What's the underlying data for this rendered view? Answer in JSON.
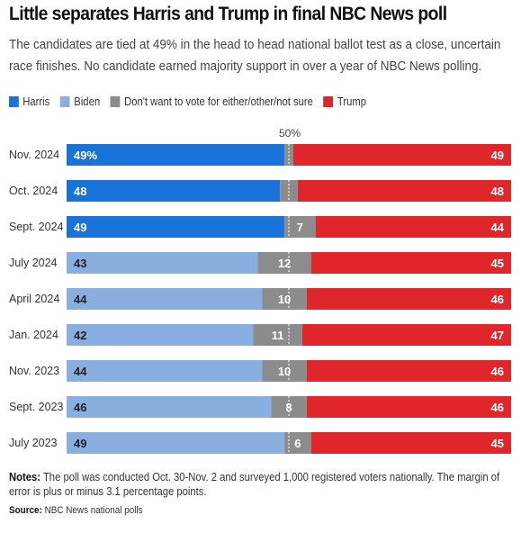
{
  "title": "Little separates Harris and Trump in final NBC News poll",
  "subtitle": "The candidates are tied at 49% in the head to head national ballot test as a close, uncertain race finishes. No candidate earned majority support in over a year of NBC News polling.",
  "legend": [
    {
      "label": "Harris",
      "color": "#1a73d9"
    },
    {
      "label": "Biden",
      "color": "#89aee0"
    },
    {
      "label": "Don't want to vote for either/other/not sure",
      "color": "#8c8c8c"
    },
    {
      "label": "Trump",
      "color": "#e0262b"
    }
  ],
  "notes_label": "Notes:",
  "notes_text": " The poll was conducted Oct. 30-Nov. 2 and surveyed 1,000 registered voters nationally. The margin of error is plus or minus 3.1 percentage points.",
  "source_label": "Source:",
  "source_text": " NBC News national polls",
  "chart_data": {
    "type": "bar",
    "orientation": "horizontal",
    "stacked": true,
    "categories": [
      "Nov. 2024",
      "Oct. 2024",
      "Sept. 2024",
      "July 2024",
      "April 2024",
      "Jan. 2024",
      "Nov. 2023",
      "Sept. 2023",
      "July 2023"
    ],
    "democrat_candidate": [
      "Harris",
      "Harris",
      "Harris",
      "Biden",
      "Biden",
      "Biden",
      "Biden",
      "Biden",
      "Biden"
    ],
    "series": [
      {
        "name": "Harris / Biden",
        "values": [
          49,
          48,
          49,
          43,
          44,
          42,
          44,
          46,
          49
        ]
      },
      {
        "name": "Don't want to vote for either/other/not sure",
        "values": [
          2,
          4,
          7,
          12,
          10,
          11,
          10,
          8,
          6
        ]
      },
      {
        "name": "Trump",
        "values": [
          49,
          48,
          44,
          45,
          46,
          47,
          46,
          46,
          45
        ]
      }
    ],
    "labels": {
      "dem": [
        "49%",
        "48",
        "49",
        "43",
        "44",
        "42",
        "44",
        "46",
        "49"
      ],
      "other": [
        "",
        "",
        "7",
        "12",
        "10",
        "11",
        "10",
        "8",
        "6"
      ],
      "trump": [
        "49",
        "48",
        "44",
        "45",
        "46",
        "47",
        "46",
        "46",
        "45"
      ]
    },
    "reference_line": {
      "value": 50,
      "label": "50%"
    },
    "xlim": [
      0,
      100
    ],
    "colors": {
      "Harris": "#1a73d9",
      "Biden": "#89aee0",
      "other": "#8c8c8c",
      "Trump": "#e0262b"
    },
    "grid": false,
    "legend_position": "top-left"
  }
}
